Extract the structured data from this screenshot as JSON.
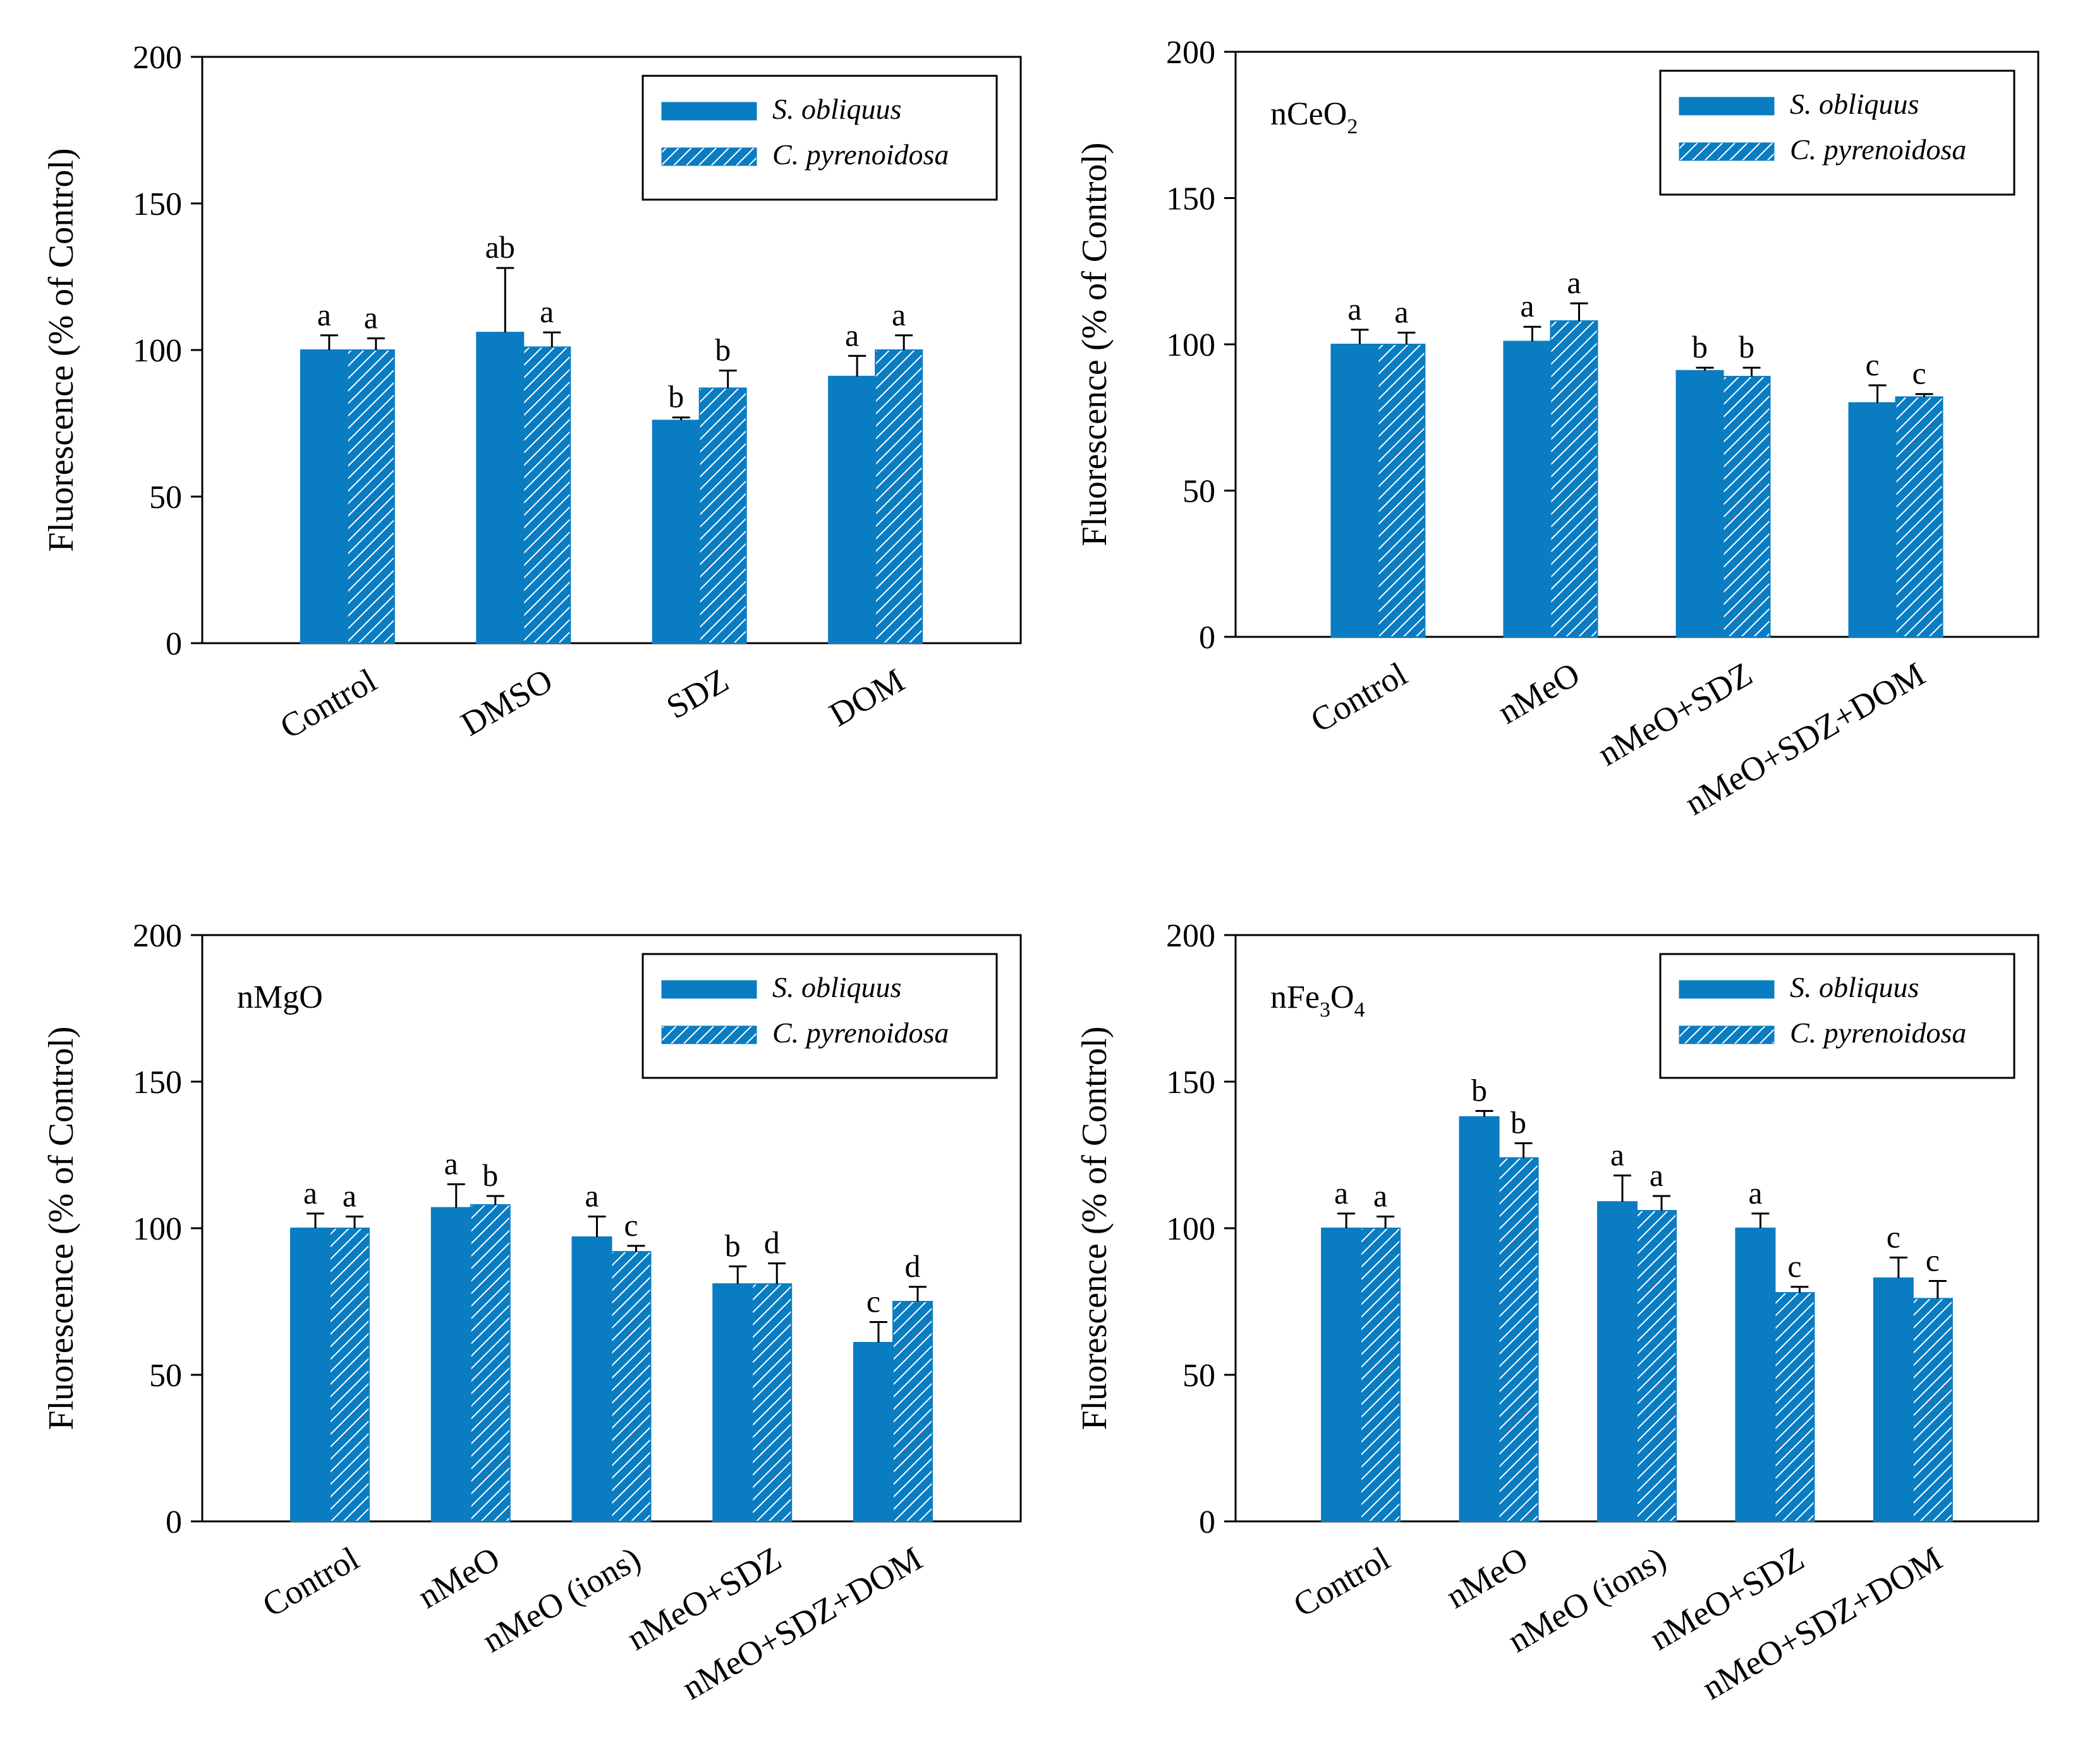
{
  "colors": {
    "bar": "#0a7cc2",
    "hatch": "#ffffff",
    "axis": "#000000"
  },
  "legend": [
    "S. obliquus",
    "C. pyrenoidosa"
  ],
  "chart_data": [
    {
      "type": "bar",
      "title": "",
      "xlabel": "",
      "ylabel": "Fluorescence (% of Control)",
      "ylim": [
        0,
        200
      ],
      "yticks": [
        0,
        50,
        100,
        150,
        200
      ],
      "categories": [
        "Control",
        "DMSO",
        "SDZ",
        "DOM"
      ],
      "series": [
        {
          "name": "S. obliquus",
          "values": [
            100,
            106,
            76,
            91
          ],
          "errors": [
            5,
            22,
            1,
            7
          ],
          "letters": [
            "a",
            "ab",
            "b",
            "a"
          ]
        },
        {
          "name": "C. pyrenoidosa",
          "values": [
            100,
            101,
            87,
            100
          ],
          "errors": [
            4,
            5,
            6,
            5
          ],
          "letters": [
            "a",
            "a",
            "b",
            "a"
          ]
        }
      ],
      "legend_position": "top-right"
    },
    {
      "type": "bar",
      "title": "",
      "panel_label": {
        "main": "nCeO",
        "sub": "2",
        "tail": ""
      },
      "xlabel": "",
      "ylabel": "Fluorescence (% of Control)",
      "ylim": [
        0,
        200
      ],
      "yticks": [
        0,
        50,
        100,
        150,
        200
      ],
      "categories": [
        "Control",
        "nMeO",
        "nMeO+SDZ",
        "nMeO+SDZ+DOM"
      ],
      "series": [
        {
          "name": "S. obliquus",
          "values": [
            100,
            101,
            91,
            80
          ],
          "errors": [
            5,
            5,
            1,
            6
          ],
          "letters": [
            "a",
            "a",
            "b",
            "c"
          ]
        },
        {
          "name": "C. pyrenoidosa",
          "values": [
            100,
            108,
            89,
            82
          ],
          "errors": [
            4,
            6,
            3,
            1
          ],
          "letters": [
            "a",
            "a",
            "b",
            "c"
          ]
        }
      ],
      "legend_position": "top-right"
    },
    {
      "type": "bar",
      "title": "",
      "panel_label": {
        "main": "nMgO",
        "sub": "",
        "tail": ""
      },
      "xlabel": "",
      "ylabel": "Fluorescence (% of Control)",
      "ylim": [
        0,
        200
      ],
      "yticks": [
        0,
        50,
        100,
        150,
        200
      ],
      "categories": [
        "Control",
        "nMeO",
        "nMeO (ions)",
        "nMeO+SDZ",
        "nMeO+SDZ+DOM"
      ],
      "series": [
        {
          "name": "S. obliquus",
          "values": [
            100,
            107,
            97,
            81,
            61
          ],
          "errors": [
            5,
            8,
            7,
            6,
            7
          ],
          "letters": [
            "a",
            "a",
            "a",
            "b",
            "c"
          ]
        },
        {
          "name": "C. pyrenoidosa",
          "values": [
            100,
            108,
            92,
            81,
            75
          ],
          "errors": [
            4,
            3,
            2,
            7,
            5
          ],
          "letters": [
            "a",
            "b",
            "c",
            "d",
            "d"
          ]
        }
      ],
      "legend_position": "top-right"
    },
    {
      "type": "bar",
      "title": "",
      "panel_label": {
        "main": "nFe",
        "sub": "3",
        "tail": "O",
        "sub2": "4"
      },
      "xlabel": "",
      "ylabel": "Fluorescence (% of Control)",
      "ylim": [
        0,
        200
      ],
      "yticks": [
        0,
        50,
        100,
        150,
        200
      ],
      "categories": [
        "Control",
        "nMeO",
        "nMeO (ions)",
        "nMeO+SDZ",
        "nMeO+SDZ+DOM"
      ],
      "series": [
        {
          "name": "S. obliquus",
          "values": [
            100,
            138,
            109,
            100,
            83
          ],
          "errors": [
            5,
            2,
            9,
            5,
            7
          ],
          "letters": [
            "a",
            "b",
            "a",
            "a",
            "c"
          ]
        },
        {
          "name": "C. pyrenoidosa",
          "values": [
            100,
            124,
            106,
            78,
            76
          ],
          "errors": [
            4,
            5,
            5,
            2,
            6
          ],
          "letters": [
            "a",
            "b",
            "a",
            "c",
            "c"
          ]
        }
      ],
      "legend_position": "top-right"
    }
  ]
}
